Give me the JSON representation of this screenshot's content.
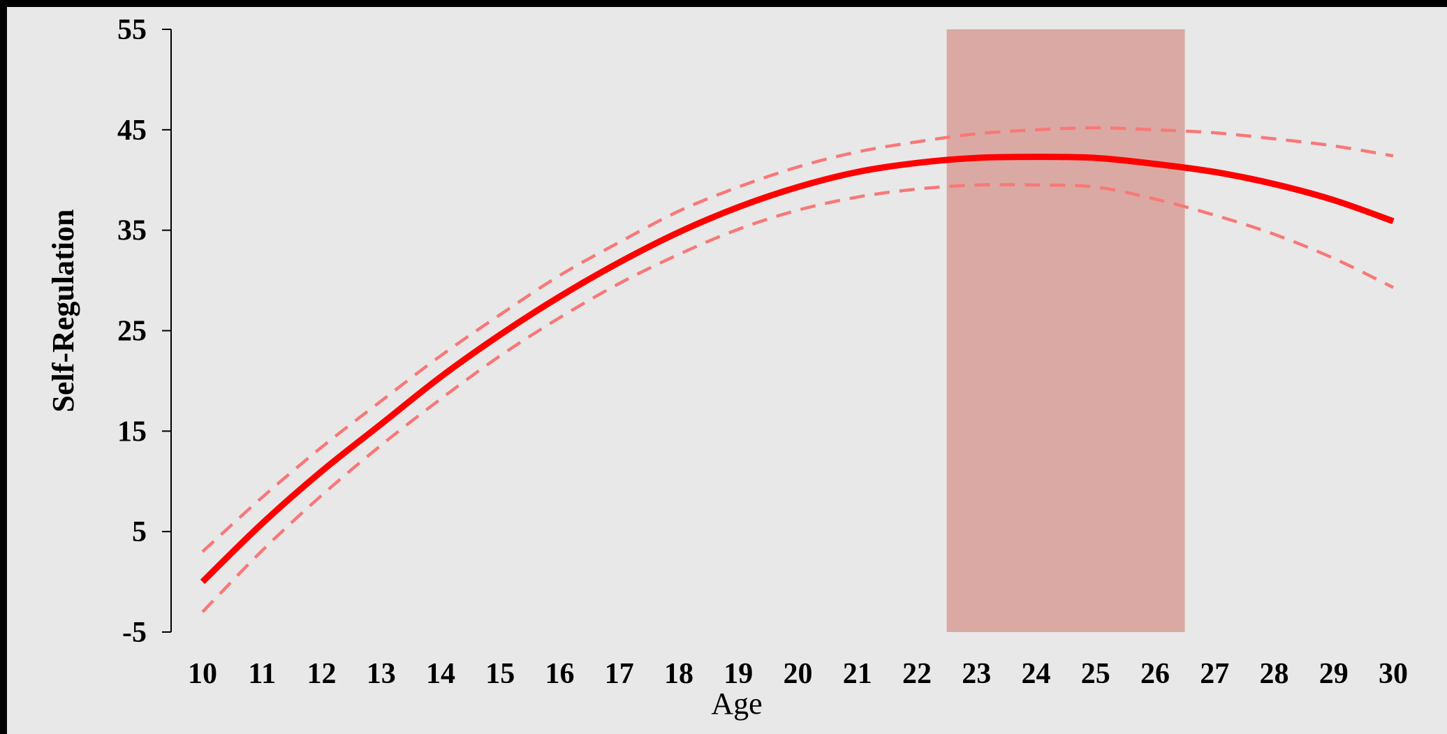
{
  "chart_data": {
    "type": "line",
    "title": "",
    "xlabel": "Age",
    "ylabel": "Self-Regulation",
    "xlim": [
      10,
      30
    ],
    "ylim": [
      -5,
      55
    ],
    "x_ticks": [
      10,
      11,
      12,
      13,
      14,
      15,
      16,
      17,
      18,
      19,
      20,
      21,
      22,
      23,
      24,
      25,
      26,
      27,
      28,
      29,
      30
    ],
    "y_ticks": [
      -5,
      5,
      15,
      25,
      35,
      45,
      55
    ],
    "grid": false,
    "legend": "none",
    "highlight_band": {
      "x_start": 22.5,
      "x_end": 26.5,
      "color": "#dba9a3"
    },
    "series": [
      {
        "style": "solid",
        "color": "#ff0000",
        "x": [
          10,
          11,
          12,
          13,
          14,
          15,
          16,
          17,
          18,
          19,
          20,
          21,
          22,
          23,
          24,
          25,
          26,
          27,
          28,
          29,
          30
        ],
        "values": [
          0.0,
          5.8,
          11.0,
          15.7,
          20.4,
          24.6,
          28.4,
          31.8,
          34.8,
          37.3,
          39.3,
          40.8,
          41.7,
          42.2,
          42.3,
          42.2,
          41.6,
          40.8,
          39.6,
          38.0,
          35.9
        ]
      },
      {
        "style": "dashed",
        "color": "#f87878",
        "x": [
          10,
          11,
          12,
          13,
          14,
          15,
          16,
          17,
          18,
          19,
          20,
          21,
          22,
          23,
          24,
          25,
          26,
          27,
          28,
          29,
          30
        ],
        "values": [
          3.0,
          8.4,
          13.4,
          18.0,
          22.5,
          26.6,
          30.5,
          33.8,
          36.9,
          39.3,
          41.3,
          42.8,
          43.8,
          44.6,
          45.0,
          45.2,
          45.0,
          44.7,
          44.1,
          43.4,
          42.4
        ]
      },
      {
        "style": "dashed",
        "color": "#f87878",
        "x": [
          10,
          11,
          12,
          13,
          14,
          15,
          16,
          17,
          18,
          19,
          20,
          21,
          22,
          23,
          24,
          25,
          26,
          27,
          28,
          29,
          30
        ],
        "values": [
          -3.0,
          3.1,
          8.6,
          13.6,
          18.2,
          22.5,
          26.3,
          29.7,
          32.6,
          35.1,
          37.0,
          38.3,
          39.1,
          39.5,
          39.5,
          39.3,
          38.1,
          36.5,
          34.6,
          32.2,
          29.3
        ]
      }
    ]
  }
}
